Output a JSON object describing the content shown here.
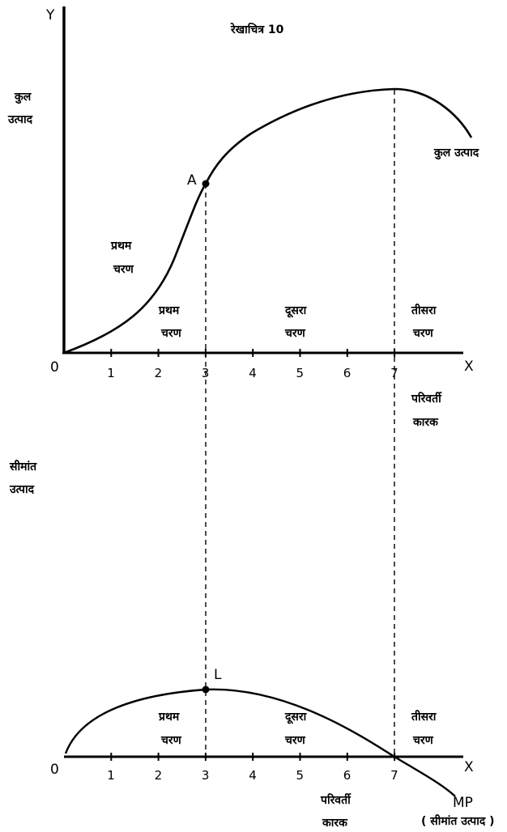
{
  "title": "रेखाचित्र 10",
  "top_panel": {
    "y_axis_letter": "Y",
    "y_label": [
      "कुल",
      "उत्पाद"
    ],
    "origin": "0",
    "x_axis_letter": "X",
    "ticks": [
      "1",
      "2",
      "3",
      "4",
      "5",
      "6",
      "7"
    ],
    "point_label": "A",
    "curve_label": "कुल उत्पाद",
    "stage_labels": {
      "first_outer": [
        "प्रथम",
        "चरण"
      ],
      "first": [
        "प्रथम",
        "चरण"
      ],
      "second": [
        "दूसरा",
        "चरण"
      ],
      "third": [
        "तीसरा",
        "चरण"
      ]
    },
    "x_label": [
      "परिवर्ती",
      "कारक"
    ]
  },
  "bottom_panel": {
    "y_label": [
      "सीमांत",
      "उत्पाद"
    ],
    "origin": "0",
    "x_axis_letter": "X",
    "ticks": [
      "1",
      "2",
      "3",
      "4",
      "5",
      "6",
      "7"
    ],
    "point_label": "L",
    "curve_label": "MP",
    "curve_sublabel": "( सीमांत उत्पाद )",
    "stage_labels": {
      "first": [
        "प्रथम",
        "चरण"
      ],
      "second": [
        "दूसरा",
        "चरण"
      ],
      "third": [
        "तीसरा",
        "चरण"
      ]
    },
    "x_label": [
      "परिवर्ती",
      "कारक"
    ]
  }
}
